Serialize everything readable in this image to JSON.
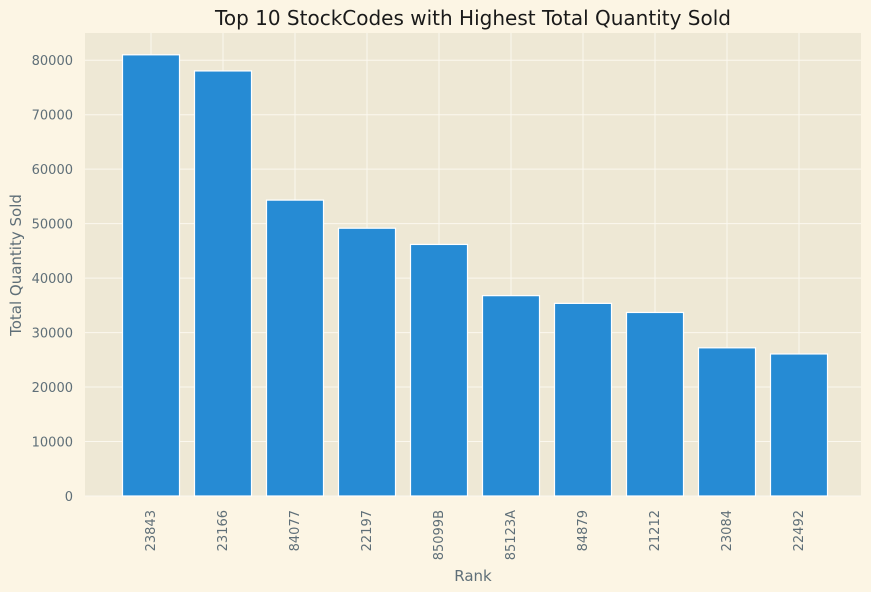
{
  "chart_data": {
    "type": "bar",
    "title": "Top 10 StockCodes with Highest Total Quantity Sold",
    "xlabel": "Rank",
    "ylabel": "Total Quantity Sold",
    "categories": [
      "23843",
      "23166",
      "84077",
      "22197",
      "85099B",
      "85123A",
      "84879",
      "21212",
      "23084",
      "22492"
    ],
    "values": [
      80995,
      78033,
      54319,
      49160,
      46181,
      36782,
      35362,
      33693,
      27202,
      26076
    ],
    "ylim": [
      0,
      85000
    ],
    "yticks": [
      0,
      10000,
      20000,
      30000,
      40000,
      50000,
      60000,
      70000,
      80000
    ],
    "grid": true,
    "legend": "none",
    "colors": {
      "bar": "#268bd4",
      "plot_background": "#eee8d5",
      "page_background": "#fcf5e4",
      "grid": "#fbf8ef"
    }
  }
}
